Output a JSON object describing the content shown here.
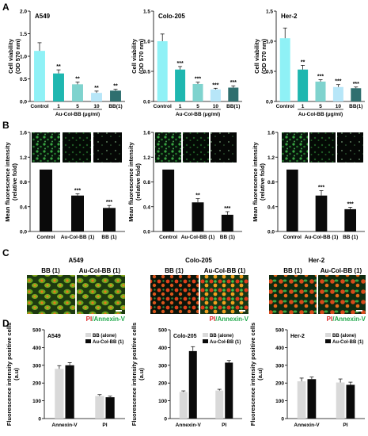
{
  "panel_letters": [
    "A",
    "B",
    "C",
    "D"
  ],
  "colors": {
    "bar_control": "#8ff1f6",
    "bar_1": "#1fb7b0",
    "bar_5": "#7fd3ce",
    "bar_10": "#b7e6f8",
    "bar_bb": "#2f6f6f",
    "bar_black": "#0a0a0a",
    "bar_grey": "#d9d9d9",
    "red_label": "#e02020",
    "green_label": "#1fa84a"
  },
  "panel_c": {
    "groups": [
      {
        "cell_line": "A549",
        "conditions": [
          "BB (1)",
          "Au-Col-BB (1)"
        ],
        "stain_pi": "PI",
        "stain_sep": "/",
        "stain_annexin": "Annexin-V"
      },
      {
        "cell_line": "Colo-205",
        "conditions": [
          "BB (1)",
          "Au-Col-BB (1)"
        ],
        "stain_pi": "PI",
        "stain_sep": "/",
        "stain_annexin": "Annexin-V"
      },
      {
        "cell_line": "Her-2",
        "conditions": [
          "BB (1)",
          "Au-Col-BB (1)"
        ],
        "stain_pi": "PI",
        "stain_sep": "/",
        "stain_annexin": "Annexin-V"
      }
    ]
  },
  "chart_data": [
    {
      "panel": "A",
      "type": "bar",
      "cell_line": "A549",
      "categories": [
        "Control",
        "1",
        "5",
        "10",
        "BB(1)"
      ],
      "values": [
        1.12,
        0.62,
        0.38,
        0.19,
        0.24
      ],
      "errors": [
        0.18,
        0.08,
        0.05,
        0.04,
        0.03
      ],
      "significance": [
        "",
        "**",
        "**",
        "**",
        "**"
      ],
      "bar_colors": [
        "#8ff1f6",
        "#1fb7b0",
        "#7fd3ce",
        "#b7e6f8",
        "#2f6f6f"
      ],
      "ylabel": "Cell viability (OD 570 nm)",
      "xlabel": "Au-Col-BB (μg/ml)",
      "ylim": [
        0,
        2.0
      ],
      "yticks": [
        "0.0",
        "0.5",
        "1.0",
        "1.5",
        "2.0"
      ]
    },
    {
      "panel": "A",
      "type": "bar",
      "cell_line": "Colo-205",
      "categories": [
        "Control",
        "1",
        "5",
        "10",
        "BB(1)"
      ],
      "values": [
        1.0,
        0.53,
        0.29,
        0.2,
        0.23
      ],
      "errors": [
        0.12,
        0.05,
        0.03,
        0.02,
        0.03
      ],
      "significance": [
        "",
        "***",
        "***",
        "***",
        "***"
      ],
      "bar_colors": [
        "#8ff1f6",
        "#1fb7b0",
        "#7fd3ce",
        "#b7e6f8",
        "#2f6f6f"
      ],
      "ylabel": "Cell viability (OD 570 nm)",
      "xlabel": "Au-Col-BB (μg/ml)",
      "ylim": [
        0,
        1.5
      ],
      "yticks": [
        "0.0",
        "0.5",
        "1.0",
        "1.5"
      ]
    },
    {
      "panel": "A",
      "type": "bar",
      "cell_line": "Her-2",
      "categories": [
        "Control",
        "1",
        "5",
        "10",
        "BB(1)"
      ],
      "values": [
        1.05,
        0.53,
        0.33,
        0.24,
        0.22
      ],
      "errors": [
        0.17,
        0.07,
        0.03,
        0.04,
        0.02
      ],
      "significance": [
        "",
        "**",
        "***",
        "***",
        "***"
      ],
      "bar_colors": [
        "#8ff1f6",
        "#1fb7b0",
        "#7fd3ce",
        "#b7e6f8",
        "#2f6f6f"
      ],
      "ylabel": "Cell viability (OD 570 nm)",
      "xlabel": "Au-Col-BB (μg/ml)",
      "ylim": [
        0,
        1.5
      ],
      "yticks": [
        "0.0",
        "0.5",
        "1.0",
        "1.5"
      ]
    },
    {
      "panel": "B",
      "type": "bar",
      "categories": [
        "Control",
        "Au-Col-BB (1)",
        "BB (1)"
      ],
      "values": [
        1.0,
        0.58,
        0.38
      ],
      "errors": [
        0.0,
        0.03,
        0.04
      ],
      "significance": [
        "",
        "***",
        "***"
      ],
      "bar_colors": [
        "#0a0a0a",
        "#0a0a0a",
        "#0a0a0a"
      ],
      "ylabel": "Mean fluorescence intensity (relative fold)",
      "ylim": [
        0,
        1.6
      ],
      "yticks": [
        "0.0",
        "0.4",
        "0.8",
        "1.2",
        "1.6"
      ]
    },
    {
      "panel": "B",
      "type": "bar",
      "categories": [
        "Control",
        "Au-Col-BB (1)",
        "BB (1)"
      ],
      "values": [
        1.0,
        0.47,
        0.27
      ],
      "errors": [
        0.0,
        0.06,
        0.05
      ],
      "significance": [
        "",
        "**",
        "***"
      ],
      "bar_colors": [
        "#0a0a0a",
        "#0a0a0a",
        "#0a0a0a"
      ],
      "ylabel": "Mean fluorescence intensity (relative fold)",
      "ylim": [
        0,
        1.6
      ],
      "yticks": [
        "0.0",
        "0.4",
        "0.8",
        "1.2",
        "1.6"
      ]
    },
    {
      "panel": "B",
      "type": "bar",
      "categories": [
        "Control",
        "Au-Col-BB (1)",
        "BB (1)"
      ],
      "values": [
        1.0,
        0.58,
        0.36
      ],
      "errors": [
        0.0,
        0.08,
        0.03
      ],
      "significance": [
        "",
        "***",
        "***"
      ],
      "bar_colors": [
        "#0a0a0a",
        "#0a0a0a",
        "#0a0a0a"
      ],
      "ylabel": "Mean fluorescence intensity (relative fold)",
      "ylim": [
        0,
        1.6
      ],
      "yticks": [
        "0.0",
        "0.4",
        "0.8",
        "1.2",
        "1.6"
      ]
    },
    {
      "panel": "D",
      "type": "bar",
      "cell_line": "A549",
      "categories": [
        "Annexin-V",
        "PI"
      ],
      "series": [
        {
          "name": "BB (alone)",
          "color": "#d9d9d9",
          "values": [
            280,
            127
          ],
          "errors": [
            18,
            8
          ]
        },
        {
          "name": "Au-Col-BB (1)",
          "color": "#0a0a0a",
          "values": [
            300,
            120
          ],
          "errors": [
            15,
            6
          ]
        }
      ],
      "ylabel": "Fluorescence intensity positive cells (a.u)",
      "ylim": [
        0,
        500
      ],
      "yticks": [
        "0",
        "100",
        "200",
        "300",
        "400",
        "500"
      ],
      "legend": "top-right"
    },
    {
      "panel": "D",
      "type": "bar",
      "cell_line": "Colo-205",
      "categories": [
        "Annexin-V",
        "PI"
      ],
      "series": [
        {
          "name": "BB (alone)",
          "color": "#d9d9d9",
          "values": [
            150,
            158
          ],
          "errors": [
            6,
            7
          ]
        },
        {
          "name": "Au-Col-BB (1)",
          "color": "#0a0a0a",
          "values": [
            380,
            315
          ],
          "errors": [
            25,
            12
          ]
        }
      ],
      "ylabel": "Fluorescence intensity positive cells (a.u)",
      "ylim": [
        0,
        500
      ],
      "yticks": [
        "0",
        "100",
        "200",
        "300",
        "400",
        "500"
      ],
      "legend": "top-right"
    },
    {
      "panel": "D",
      "type": "bar",
      "cell_line": "Her-2",
      "categories": [
        "Annexin-V",
        "PI"
      ],
      "series": [
        {
          "name": "BB (alone)",
          "color": "#d9d9d9",
          "values": [
            210,
            203
          ],
          "errors": [
            18,
            20
          ]
        },
        {
          "name": "Au-Col-BB (1)",
          "color": "#0a0a0a",
          "values": [
            222,
            190
          ],
          "errors": [
            12,
            15
          ]
        }
      ],
      "ylabel": "Fluorescence intensity positive cells (a.u)",
      "ylim": [
        0,
        500
      ],
      "yticks": [
        "0",
        "100",
        "200",
        "300",
        "400",
        "500"
      ],
      "legend": "top-right"
    }
  ]
}
